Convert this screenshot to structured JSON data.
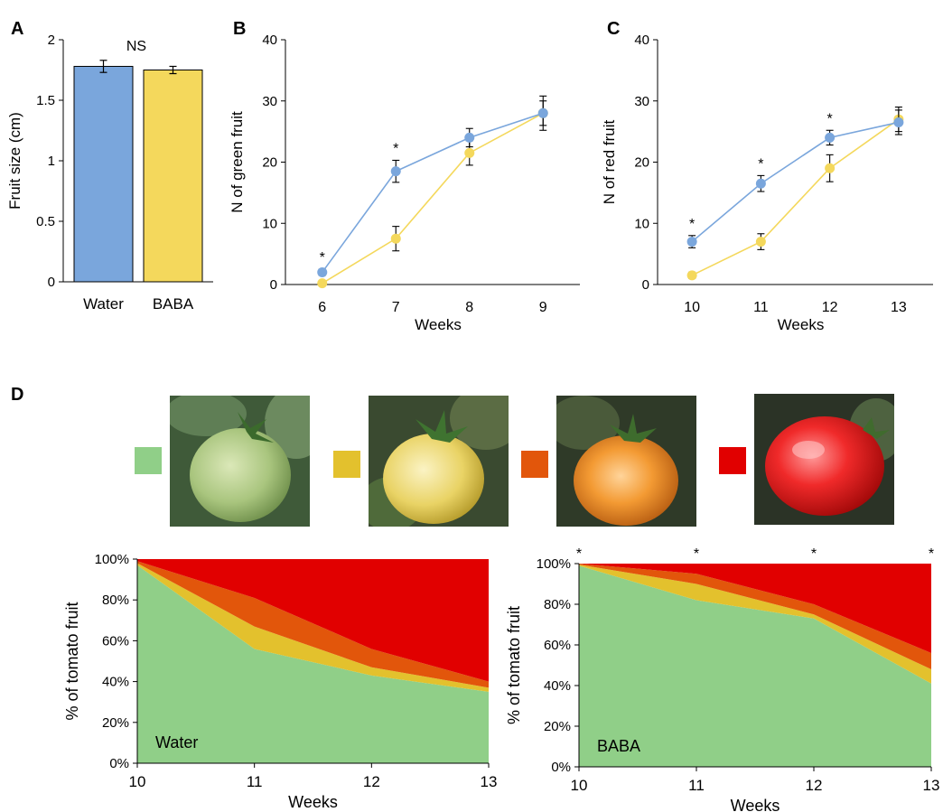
{
  "panel_labels": {
    "a": "A",
    "b": "B",
    "c": "C",
    "d": "D"
  },
  "colors": {
    "water": "#7aa6dc",
    "baba": "#f4d85c",
    "green": "#90cf88",
    "yellow": "#e3c12d",
    "orange": "#e2560b",
    "red": "#e10000",
    "error_bar": "#000000"
  },
  "chart_data": [
    {
      "id": "A",
      "type": "bar",
      "categories": [
        "Water",
        "BABA"
      ],
      "values": [
        1.78,
        1.75
      ],
      "errors": [
        0.05,
        0.03
      ],
      "ylabel": "Fruit size (cm)",
      "xlabel": "",
      "ylim": [
        0,
        2
      ],
      "yticks": [
        "0",
        "0.5",
        "1",
        "1.5",
        "2"
      ],
      "annotation": "NS",
      "grid": false
    },
    {
      "id": "B",
      "type": "line",
      "x": [
        6,
        7,
        8,
        9
      ],
      "xticks": [
        "6",
        "7",
        "8",
        "9"
      ],
      "series": [
        {
          "key": "water",
          "values": [
            2,
            18.5,
            24,
            28
          ],
          "errors": [
            0.5,
            1.8,
            1.5,
            2.8
          ]
        },
        {
          "key": "baba",
          "values": [
            0.2,
            7.5,
            21.5,
            28
          ],
          "errors": [
            0.2,
            2,
            2,
            2
          ]
        }
      ],
      "significance": [
        "*",
        "*",
        "",
        ""
      ],
      "xlabel": "Weeks",
      "ylabel": "N of green fruit",
      "ylim": [
        0,
        40
      ],
      "yticks": [
        "0",
        "10",
        "20",
        "30",
        "40"
      ],
      "grid": false
    },
    {
      "id": "C",
      "type": "line",
      "x": [
        10,
        11,
        12,
        13
      ],
      "xticks": [
        "10",
        "11",
        "12",
        "13"
      ],
      "series": [
        {
          "key": "water",
          "values": [
            7,
            16.5,
            24,
            26.5
          ],
          "errors": [
            1,
            1.3,
            1.2,
            2
          ]
        },
        {
          "key": "baba",
          "values": [
            1.5,
            7,
            19,
            27
          ],
          "errors": [
            0.5,
            1.3,
            2.2,
            2
          ]
        }
      ],
      "significance": [
        "*",
        "*",
        "*",
        ""
      ],
      "xlabel": "Weeks",
      "ylabel": "N of red fruit",
      "ylim": [
        0,
        40
      ],
      "yticks": [
        "0",
        "10",
        "20",
        "30",
        "40"
      ],
      "grid": false
    },
    {
      "id": "D-water",
      "type": "area",
      "stacked": true,
      "x": [
        10,
        11,
        12,
        13
      ],
      "xticks": [
        "10",
        "11",
        "12",
        "13"
      ],
      "series": [
        {
          "key": "green",
          "values": [
            97,
            56,
            43,
            35
          ]
        },
        {
          "key": "yellow",
          "values": [
            1,
            11,
            4,
            2
          ]
        },
        {
          "key": "orange",
          "values": [
            1,
            14,
            9,
            3
          ]
        },
        {
          "key": "red",
          "values": [
            1,
            19,
            44,
            60
          ]
        }
      ],
      "xlabel": "Weeks",
      "ylabel": "% of tomato fruit",
      "ylim": [
        0,
        100
      ],
      "yticks": [
        "0%",
        "20%",
        "40%",
        "60%",
        "80%",
        "100%"
      ],
      "inset_label": "Water",
      "significance": [],
      "grid": false
    },
    {
      "id": "D-baba",
      "type": "area",
      "stacked": true,
      "x": [
        10,
        11,
        12,
        13
      ],
      "xticks": [
        "10",
        "11",
        "12",
        "13"
      ],
      "series": [
        {
          "key": "green",
          "values": [
            99,
            82,
            73,
            41
          ]
        },
        {
          "key": "yellow",
          "values": [
            0.5,
            8,
            2,
            7
          ]
        },
        {
          "key": "orange",
          "values": [
            0.5,
            5,
            5,
            8
          ]
        },
        {
          "key": "red",
          "values": [
            0,
            5,
            20,
            44
          ]
        }
      ],
      "xlabel": "Weeks",
      "ylabel": "% of tomato fruit",
      "ylim": [
        0,
        100
      ],
      "yticks": [
        "0%",
        "20%",
        "40%",
        "60%",
        "80%",
        "100%"
      ],
      "inset_label": "BABA",
      "significance": [
        "*",
        "*",
        "*",
        "*"
      ],
      "grid": false
    }
  ],
  "legend": [
    {
      "key": "green",
      "photo": "green-tomato"
    },
    {
      "key": "yellow",
      "photo": "yellow-tomato"
    },
    {
      "key": "orange",
      "photo": "orange-tomato"
    },
    {
      "key": "red",
      "photo": "red-tomato"
    }
  ]
}
